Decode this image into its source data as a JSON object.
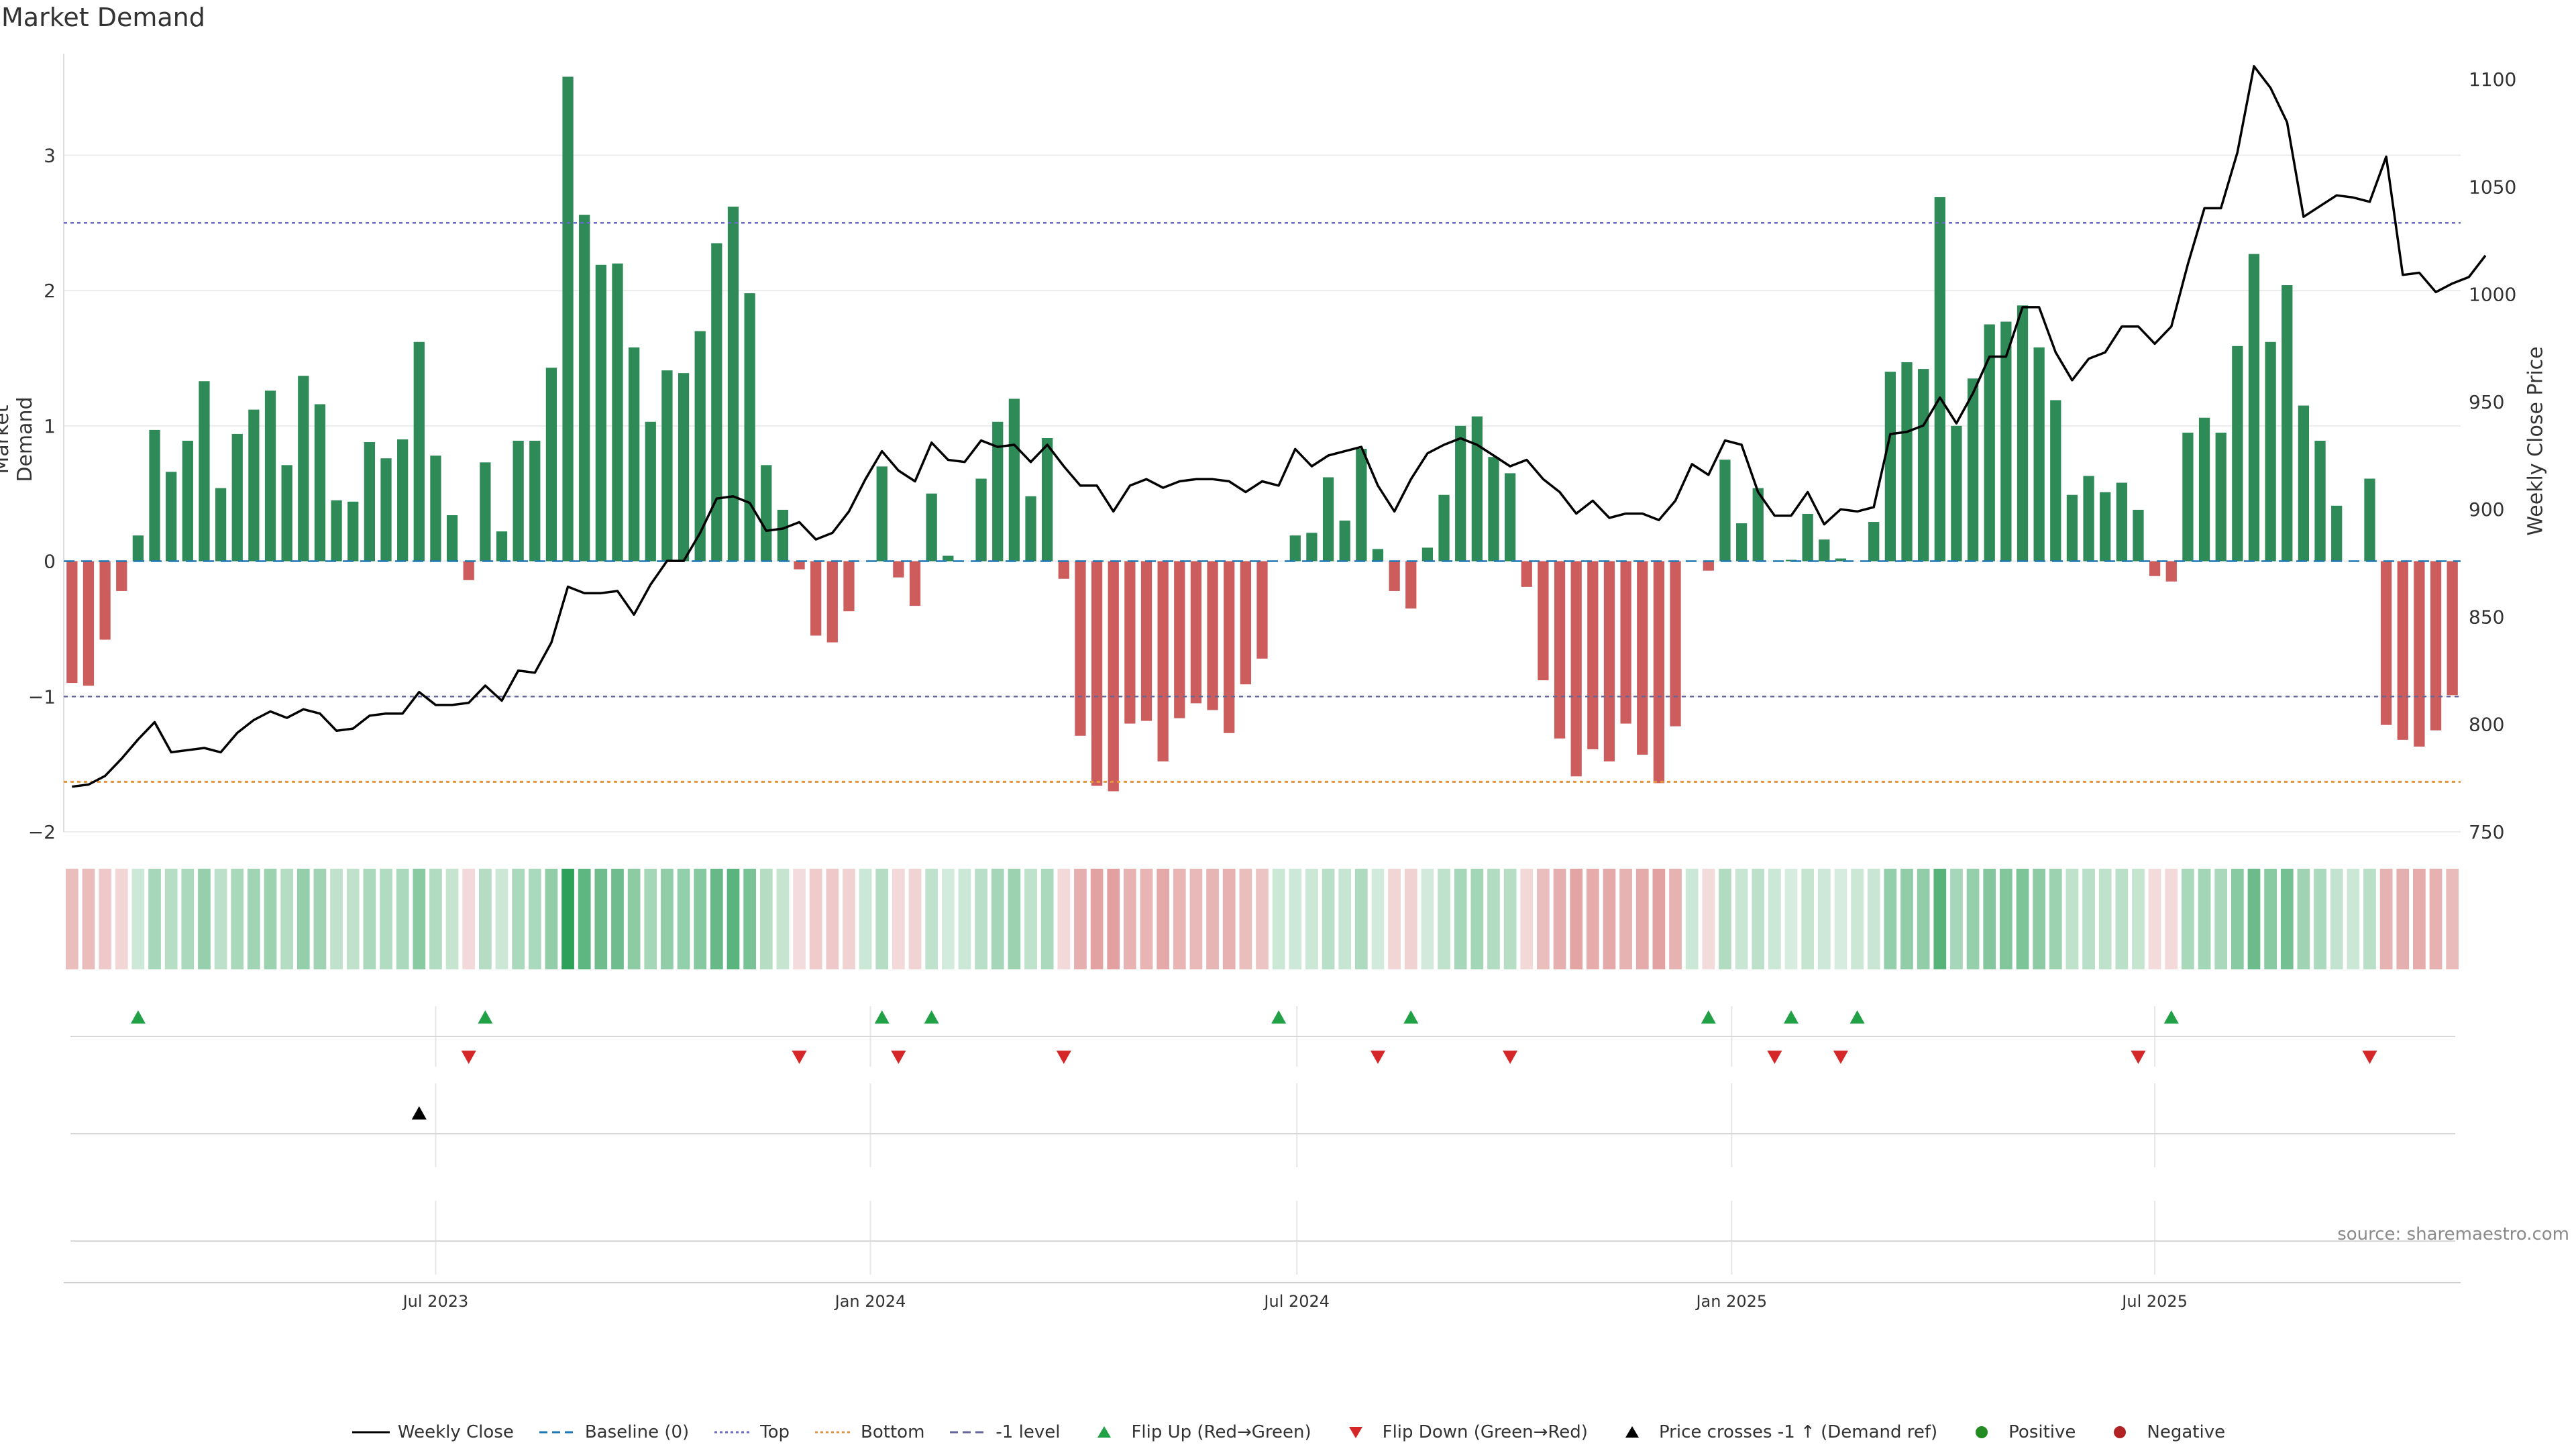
{
  "title": "Market Demand",
  "ylabel_left": "Market Demand",
  "ylabel_right": "Weekly Close Price",
  "source": "source: sharemaestro.com",
  "colors": {
    "positive": "#2e8b57",
    "negative": "#cd5c5c",
    "price": "#000000",
    "top_line": "#6a6acd",
    "bottom_line": "#e8963c",
    "neg1_line": "#666699",
    "flip_up": "#22a046",
    "flip_down": "#d62728"
  },
  "legend": [
    {
      "label": "Weekly Close",
      "kind": "line",
      "color": "#000000"
    },
    {
      "label": "Baseline (0)",
      "kind": "dash",
      "color": "#1f77b4"
    },
    {
      "label": "Top",
      "kind": "dot",
      "color": "#6a6acd"
    },
    {
      "label": "Bottom",
      "kind": "dot",
      "color": "#e8963c"
    },
    {
      "label": "-1 level",
      "kind": "dash",
      "color": "#666699"
    },
    {
      "label": "Flip Up (Red→Green)",
      "kind": "up",
      "color": "#22a046"
    },
    {
      "label": "Flip Down (Green→Red)",
      "kind": "down",
      "color": "#d62728"
    },
    {
      "label": "Price crosses -1 ↑ (Demand ref)",
      "kind": "up",
      "color": "#000000"
    },
    {
      "label": "Positive",
      "kind": "circle",
      "color": "#228b22"
    },
    {
      "label": "Negative",
      "kind": "circle",
      "color": "#b22222"
    }
  ],
  "chart_data": {
    "type": "bar",
    "start_date": "2023-01-16",
    "period": "weekly",
    "demand_ylim": [
      -2,
      3.8
    ],
    "demand_yticks": [
      -2,
      -1,
      0,
      1,
      2,
      3
    ],
    "price_ylim": [
      750,
      1115
    ],
    "price_yticks": [
      750,
      800,
      850,
      900,
      950,
      1000,
      1050,
      1100
    ],
    "top_level": 2.5,
    "neg1_level": -1.0,
    "bottom_level": -1.63,
    "x_ticks": [
      "Jul 2023",
      "Jan 2024",
      "Jul 2024",
      "Jan 2025",
      "Jul 2025"
    ],
    "x_tick_weeks": [
      22,
      48.3,
      74.1,
      100.4,
      126
    ],
    "demand": [
      -0.9,
      -0.92,
      -0.58,
      -0.22,
      0.19,
      0.97,
      0.66,
      0.89,
      1.33,
      0.54,
      0.94,
      1.12,
      1.26,
      0.71,
      1.37,
      1.16,
      0.45,
      0.44,
      0.88,
      0.76,
      0.9,
      1.62,
      0.78,
      0.34,
      -0.14,
      0.73,
      0.22,
      0.89,
      0.89,
      1.43,
      3.58,
      2.56,
      2.19,
      2.2,
      1.58,
      1.03,
      1.41,
      1.39,
      1.7,
      2.35,
      2.62,
      1.98,
      0.71,
      0.38,
      -0.06,
      -0.55,
      -0.6,
      -0.37,
      0,
      0.7,
      -0.12,
      -0.33,
      0.5,
      0.04,
      0,
      0.61,
      1.03,
      1.2,
      0.48,
      0.91,
      -0.13,
      -1.29,
      -1.66,
      -1.7,
      -1.2,
      -1.18,
      -1.48,
      -1.16,
      -1.05,
      -1.1,
      -1.27,
      -0.91,
      -0.72,
      0,
      0.19,
      0.21,
      0.62,
      0.3,
      0.83,
      0.09,
      -0.22,
      -0.35,
      0.1,
      0.49,
      1.0,
      1.07,
      0.77,
      0.65,
      -0.19,
      -0.88,
      -1.31,
      -1.59,
      -1.39,
      -1.48,
      -1.2,
      -1.43,
      -1.64,
      -1.22,
      0,
      -0.07,
      0.75,
      0.28,
      0.54,
      0,
      0.01,
      0.35,
      0.16,
      0.02,
      0,
      0.29,
      1.4,
      1.47,
      1.42,
      2.69,
      1.0,
      1.35,
      1.75,
      1.77,
      1.89,
      1.58,
      1.19,
      0.49,
      0.63,
      0.51,
      0.58,
      0.38,
      -0.11,
      -0.15,
      0.95,
      1.06,
      0.95,
      1.59,
      2.27,
      1.62,
      2.04,
      1.15,
      0.89,
      0.41,
      0,
      0.61,
      -1.21,
      -1.32,
      -1.37,
      -1.25,
      -0.99
    ],
    "price": [
      771,
      772,
      776,
      784,
      793,
      801,
      787,
      788,
      789,
      787,
      796,
      802,
      806,
      803,
      807,
      805,
      797,
      798,
      804,
      805,
      805,
      815,
      809,
      809,
      810,
      818,
      811,
      825,
      824,
      838,
      864,
      861,
      861,
      862,
      851,
      865,
      876,
      876,
      889,
      905,
      906,
      903,
      890,
      891,
      894,
      886,
      889,
      899,
      914,
      927,
      918,
      913,
      931,
      923,
      922,
      932,
      929,
      930,
      922,
      930,
      920,
      911,
      911,
      899,
      911,
      914,
      910,
      913,
      914,
      914,
      913,
      908,
      913,
      911,
      928,
      920,
      925,
      927,
      929,
      911,
      899,
      914,
      926,
      930,
      933,
      930,
      925,
      920,
      923,
      914,
      908,
      898,
      904,
      896,
      898,
      898,
      895,
      904,
      921,
      916,
      932,
      930,
      908,
      897,
      897,
      908,
      893,
      900,
      899,
      901,
      935,
      936,
      939,
      952,
      940,
      954,
      971,
      971,
      994,
      994,
      973,
      960,
      970,
      973,
      985,
      985,
      977,
      985,
      1014,
      1040,
      1040,
      1066,
      1106,
      1096,
      1080,
      1036,
      1041,
      1046,
      1045,
      1043,
      1064,
      1009,
      1010,
      1001,
      1005,
      1008,
      1018
    ],
    "flip_up_weeks": [
      4,
      25,
      49,
      52,
      73,
      81,
      99,
      104,
      108,
      127
    ],
    "flip_down_weeks": [
      24,
      44,
      50,
      60,
      79,
      87,
      103,
      107,
      125,
      139
    ],
    "price_cross_weeks": [
      21
    ]
  }
}
